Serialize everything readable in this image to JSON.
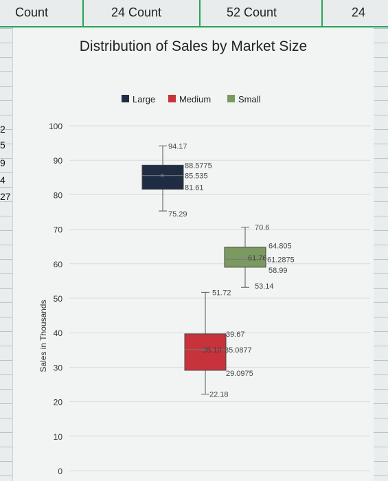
{
  "header": {
    "cells": [
      "Count",
      "24 Count",
      "52 Count",
      "24"
    ]
  },
  "left_column": [
    "2",
    "5",
    "9",
    "4",
    "27"
  ],
  "chart_data": {
    "type": "box",
    "title": "Distribution of Sales by Market Size",
    "ylabel": "Sales in Thousands",
    "ylim": [
      0,
      100
    ],
    "yticks": [
      0,
      10,
      20,
      30,
      40,
      50,
      60,
      70,
      80,
      90,
      100
    ],
    "legend_position": "top",
    "legend": [
      "Large",
      "Medium",
      "Small"
    ],
    "series": [
      {
        "name": "Large",
        "color": "#1f2d44",
        "min": 75.29,
        "q1": 81.61,
        "median": 85.535,
        "mean": 85.67,
        "q3": 88.5775,
        "max": 94.17,
        "labels": [
          "94.17",
          "88.5775",
          "85.535",
          "81.61",
          "75.29"
        ]
      },
      {
        "name": "Medium",
        "color": "#c8323a",
        "min": 22.18,
        "q1": 29.0975,
        "median": 35.0877,
        "mean": 35.1,
        "q3": 39.67,
        "max": 51.72,
        "labels": [
          "51.72",
          "39.67",
          "35.10",
          "35.0877",
          "29.0975",
          "22.18"
        ]
      },
      {
        "name": "Small",
        "color": "#7b9a60",
        "min": 53.14,
        "q1": 58.99,
        "median": 61.2875,
        "mean": 61.76,
        "q3": 64.805,
        "max": 70.6,
        "labels": [
          "70.6",
          "64.805",
          "61.76",
          "61.2875",
          "58.99",
          "53.14"
        ]
      }
    ]
  }
}
